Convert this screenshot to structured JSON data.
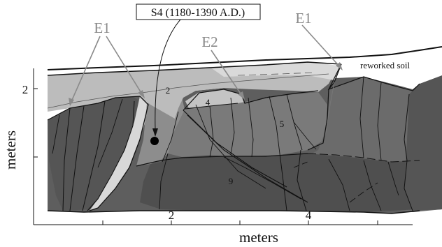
{
  "figure": {
    "sample_label": "S4 (1180-1390 A.D.)",
    "event_labels": [
      "E1",
      "E1",
      "E2"
    ],
    "soil_label": "reworked soil",
    "unit_labels": [
      "2",
      "4",
      "5",
      "9"
    ],
    "x_axis": {
      "title": "meters",
      "ticks": [
        "2",
        "4"
      ]
    },
    "y_axis": {
      "title": "meters",
      "ticks": [
        "2"
      ]
    },
    "colors": {
      "background": "#ffffff",
      "unit_dark": "#5e5e5e",
      "unit_darker": "#4f4f4f",
      "unit_mid": "#7a7a7a",
      "unit_light": "#bcbcbc",
      "unit_pale": "#d8d8d8",
      "soil": "#ffffff",
      "event_arrow": "#8a8a8a",
      "line": "#111111"
    },
    "icons": [
      "sample-marker-dot",
      "event-arrow"
    ]
  }
}
